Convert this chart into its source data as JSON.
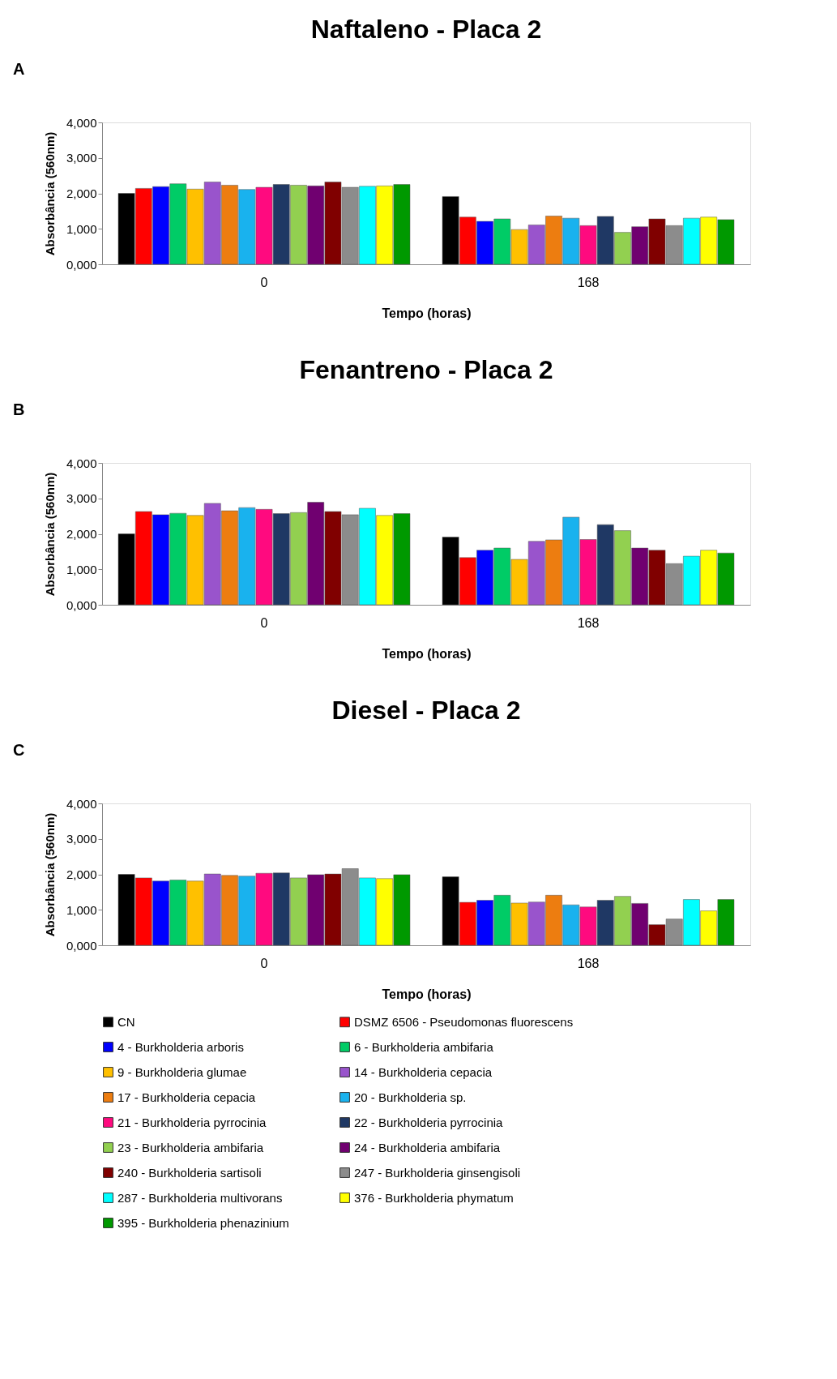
{
  "chart_data": [
    {
      "type": "bar",
      "title": "Naftaleno - Placa 2",
      "xlabel": "Tempo (horas)",
      "ylabel": "Absorbância (560nm)",
      "annotations": [
        "A"
      ],
      "categories": [
        "0",
        "168"
      ],
      "ylim": [
        0,
        4
      ],
      "yticks": [
        {
          "value": 0,
          "label": "0,000"
        },
        {
          "value": 1,
          "label": "1,000"
        },
        {
          "value": 2,
          "label": "2,000"
        },
        {
          "value": 3,
          "label": "3,000"
        },
        {
          "value": 4,
          "label": "4,000"
        }
      ],
      "grid": false,
      "legend": "bottom",
      "series": [
        {
          "name": "CN",
          "color": "#000000",
          "values": [
            2.0,
            1.91
          ]
        },
        {
          "name": "DSMZ 6506 - Pseudomonas fluorescens",
          "color": "#ff0000",
          "values": [
            2.14,
            1.33
          ]
        },
        {
          "name": "4 - Burkholderia arboris",
          "color": "#0000ff",
          "values": [
            2.19,
            1.21
          ]
        },
        {
          "name": "6 - Burkholderia ambifaria",
          "color": "#00cc66",
          "values": [
            2.27,
            1.28
          ]
        },
        {
          "name": "9 - Burkholderia glumae",
          "color": "#ffc000",
          "values": [
            2.12,
            0.98
          ]
        },
        {
          "name": "14 - Burkholderia cepacia",
          "color": "#9954cc",
          "values": [
            2.32,
            1.11
          ]
        },
        {
          "name": "17 - Burkholderia cepacia",
          "color": "#ed7d10",
          "values": [
            2.23,
            1.36
          ]
        },
        {
          "name": "20 - Burkholderia sp.",
          "color": "#19b2ee",
          "values": [
            2.11,
            1.3
          ]
        },
        {
          "name": "21 - Burkholderia pyrrocinia",
          "color": "#ff0a7f",
          "values": [
            2.17,
            1.09
          ]
        },
        {
          "name": "22 - Burkholderia pyrrocinia",
          "color": "#1f3864",
          "values": [
            2.25,
            1.35
          ]
        },
        {
          "name": "23 - Burkholderia ambifaria",
          "color": "#92d050",
          "values": [
            2.23,
            0.9
          ]
        },
        {
          "name": "24 - Burkholderia ambifaria",
          "color": "#700070",
          "values": [
            2.21,
            1.06
          ]
        },
        {
          "name": "240 - Burkholderia sartisoli",
          "color": "#800000",
          "values": [
            2.32,
            1.28
          ]
        },
        {
          "name": "247 - Burkholderia ginsengisoli",
          "color": "#8c8c8c",
          "values": [
            2.17,
            1.09
          ]
        },
        {
          "name": "287 - Burkholderia multivorans",
          "color": "#00ffff",
          "values": [
            2.2,
            1.3
          ]
        },
        {
          "name": "376 - Burkholderia phymatum",
          "color": "#ffff00",
          "values": [
            2.21,
            1.33
          ]
        },
        {
          "name": "395 - Burkholderia phenazinium",
          "color": "#009900",
          "values": [
            2.25,
            1.26
          ]
        }
      ]
    },
    {
      "type": "bar",
      "title": "Fenantreno - Placa 2",
      "xlabel": "Tempo (horas)",
      "ylabel": "Absorbância (560nm)",
      "annotations": [
        "B"
      ],
      "categories": [
        "0",
        "168"
      ],
      "ylim": [
        0,
        4
      ],
      "yticks": [
        {
          "value": 0,
          "label": "0,000"
        },
        {
          "value": 1,
          "label": "1,000"
        },
        {
          "value": 2,
          "label": "2,000"
        },
        {
          "value": 3,
          "label": "3,000"
        },
        {
          "value": 4,
          "label": "4,000"
        }
      ],
      "grid": false,
      "legend": "bottom",
      "series": [
        {
          "name": "CN",
          "color": "#000000",
          "values": [
            2.0,
            1.91
          ]
        },
        {
          "name": "DSMZ 6506 - Pseudomonas fluorescens",
          "color": "#ff0000",
          "values": [
            2.63,
            1.33
          ]
        },
        {
          "name": "4 - Burkholderia arboris",
          "color": "#0000ff",
          "values": [
            2.54,
            1.54
          ]
        },
        {
          "name": "6 - Burkholderia ambifaria",
          "color": "#00cc66",
          "values": [
            2.58,
            1.6
          ]
        },
        {
          "name": "9 - Burkholderia glumae",
          "color": "#ffc000",
          "values": [
            2.52,
            1.28
          ]
        },
        {
          "name": "14 - Burkholderia cepacia",
          "color": "#9954cc",
          "values": [
            2.86,
            1.79
          ]
        },
        {
          "name": "17 - Burkholderia cepacia",
          "color": "#ed7d10",
          "values": [
            2.65,
            1.83
          ]
        },
        {
          "name": "20 - Burkholderia sp.",
          "color": "#19b2ee",
          "values": [
            2.74,
            2.47
          ]
        },
        {
          "name": "21 - Burkholderia pyrrocinia",
          "color": "#ff0a7f",
          "values": [
            2.69,
            1.84
          ]
        },
        {
          "name": "22 - Burkholderia pyrrocinia",
          "color": "#1f3864",
          "values": [
            2.57,
            2.26
          ]
        },
        {
          "name": "23 - Burkholderia ambifaria",
          "color": "#92d050",
          "values": [
            2.6,
            2.09
          ]
        },
        {
          "name": "24 - Burkholderia ambifaria",
          "color": "#700070",
          "values": [
            2.89,
            1.6
          ]
        },
        {
          "name": "240 - Burkholderia sartisoli",
          "color": "#800000",
          "values": [
            2.63,
            1.54
          ]
        },
        {
          "name": "247 - Burkholderia ginsengisoli",
          "color": "#8c8c8c",
          "values": [
            2.54,
            1.16
          ]
        },
        {
          "name": "287 - Burkholderia multivorans",
          "color": "#00ffff",
          "values": [
            2.72,
            1.37
          ]
        },
        {
          "name": "376 - Burkholderia phymatum",
          "color": "#ffff00",
          "values": [
            2.52,
            1.54
          ]
        },
        {
          "name": "395 - Burkholderia phenazinium",
          "color": "#009900",
          "values": [
            2.57,
            1.46
          ]
        }
      ]
    },
    {
      "type": "bar",
      "title": "Diesel - Placa 2",
      "xlabel": "Tempo (horas)",
      "ylabel": "Absorbância (560nm)",
      "annotations": [
        "C"
      ],
      "categories": [
        "0",
        "168"
      ],
      "ylim": [
        0,
        4
      ],
      "yticks": [
        {
          "value": 0,
          "label": "0,000"
        },
        {
          "value": 1,
          "label": "1,000"
        },
        {
          "value": 2,
          "label": "2,000"
        },
        {
          "value": 3,
          "label": "3,000"
        },
        {
          "value": 4,
          "label": "4,000"
        }
      ],
      "grid": false,
      "legend": "bottom",
      "series": [
        {
          "name": "CN",
          "color": "#000000",
          "values": [
            2.0,
            1.93
          ]
        },
        {
          "name": "DSMZ 6506 - Pseudomonas fluorescens",
          "color": "#ff0000",
          "values": [
            1.9,
            1.21
          ]
        },
        {
          "name": "4 - Burkholderia arboris",
          "color": "#0000ff",
          "values": [
            1.81,
            1.27
          ]
        },
        {
          "name": "6 - Burkholderia ambifaria",
          "color": "#00cc66",
          "values": [
            1.84,
            1.41
          ]
        },
        {
          "name": "9 - Burkholderia glumae",
          "color": "#ffc000",
          "values": [
            1.81,
            1.19
          ]
        },
        {
          "name": "14 - Burkholderia cepacia",
          "color": "#9954cc",
          "values": [
            2.01,
            1.22
          ]
        },
        {
          "name": "17 - Burkholderia cepacia",
          "color": "#ed7d10",
          "values": [
            1.97,
            1.41
          ]
        },
        {
          "name": "20 - Burkholderia sp.",
          "color": "#19b2ee",
          "values": [
            1.95,
            1.14
          ]
        },
        {
          "name": "21 - Burkholderia pyrrocinia",
          "color": "#ff0a7f",
          "values": [
            2.03,
            1.08
          ]
        },
        {
          "name": "22 - Burkholderia pyrrocinia",
          "color": "#1f3864",
          "values": [
            2.04,
            1.27
          ]
        },
        {
          "name": "23 - Burkholderia ambifaria",
          "color": "#92d050",
          "values": [
            1.9,
            1.38
          ]
        },
        {
          "name": "24 - Burkholderia ambifaria",
          "color": "#700070",
          "values": [
            1.99,
            1.18
          ]
        },
        {
          "name": "240 - Burkholderia sartisoli",
          "color": "#800000",
          "values": [
            2.01,
            0.58
          ]
        },
        {
          "name": "247 - Burkholderia ginsengisoli",
          "color": "#8c8c8c",
          "values": [
            2.16,
            0.74
          ]
        },
        {
          "name": "287 - Burkholderia multivorans",
          "color": "#00ffff",
          "values": [
            1.9,
            1.29
          ]
        },
        {
          "name": "376 - Burkholderia phymatum",
          "color": "#ffff00",
          "values": [
            1.88,
            0.97
          ]
        },
        {
          "name": "395 - Burkholderia phenazinium",
          "color": "#009900",
          "values": [
            1.99,
            1.29
          ]
        }
      ]
    }
  ]
}
